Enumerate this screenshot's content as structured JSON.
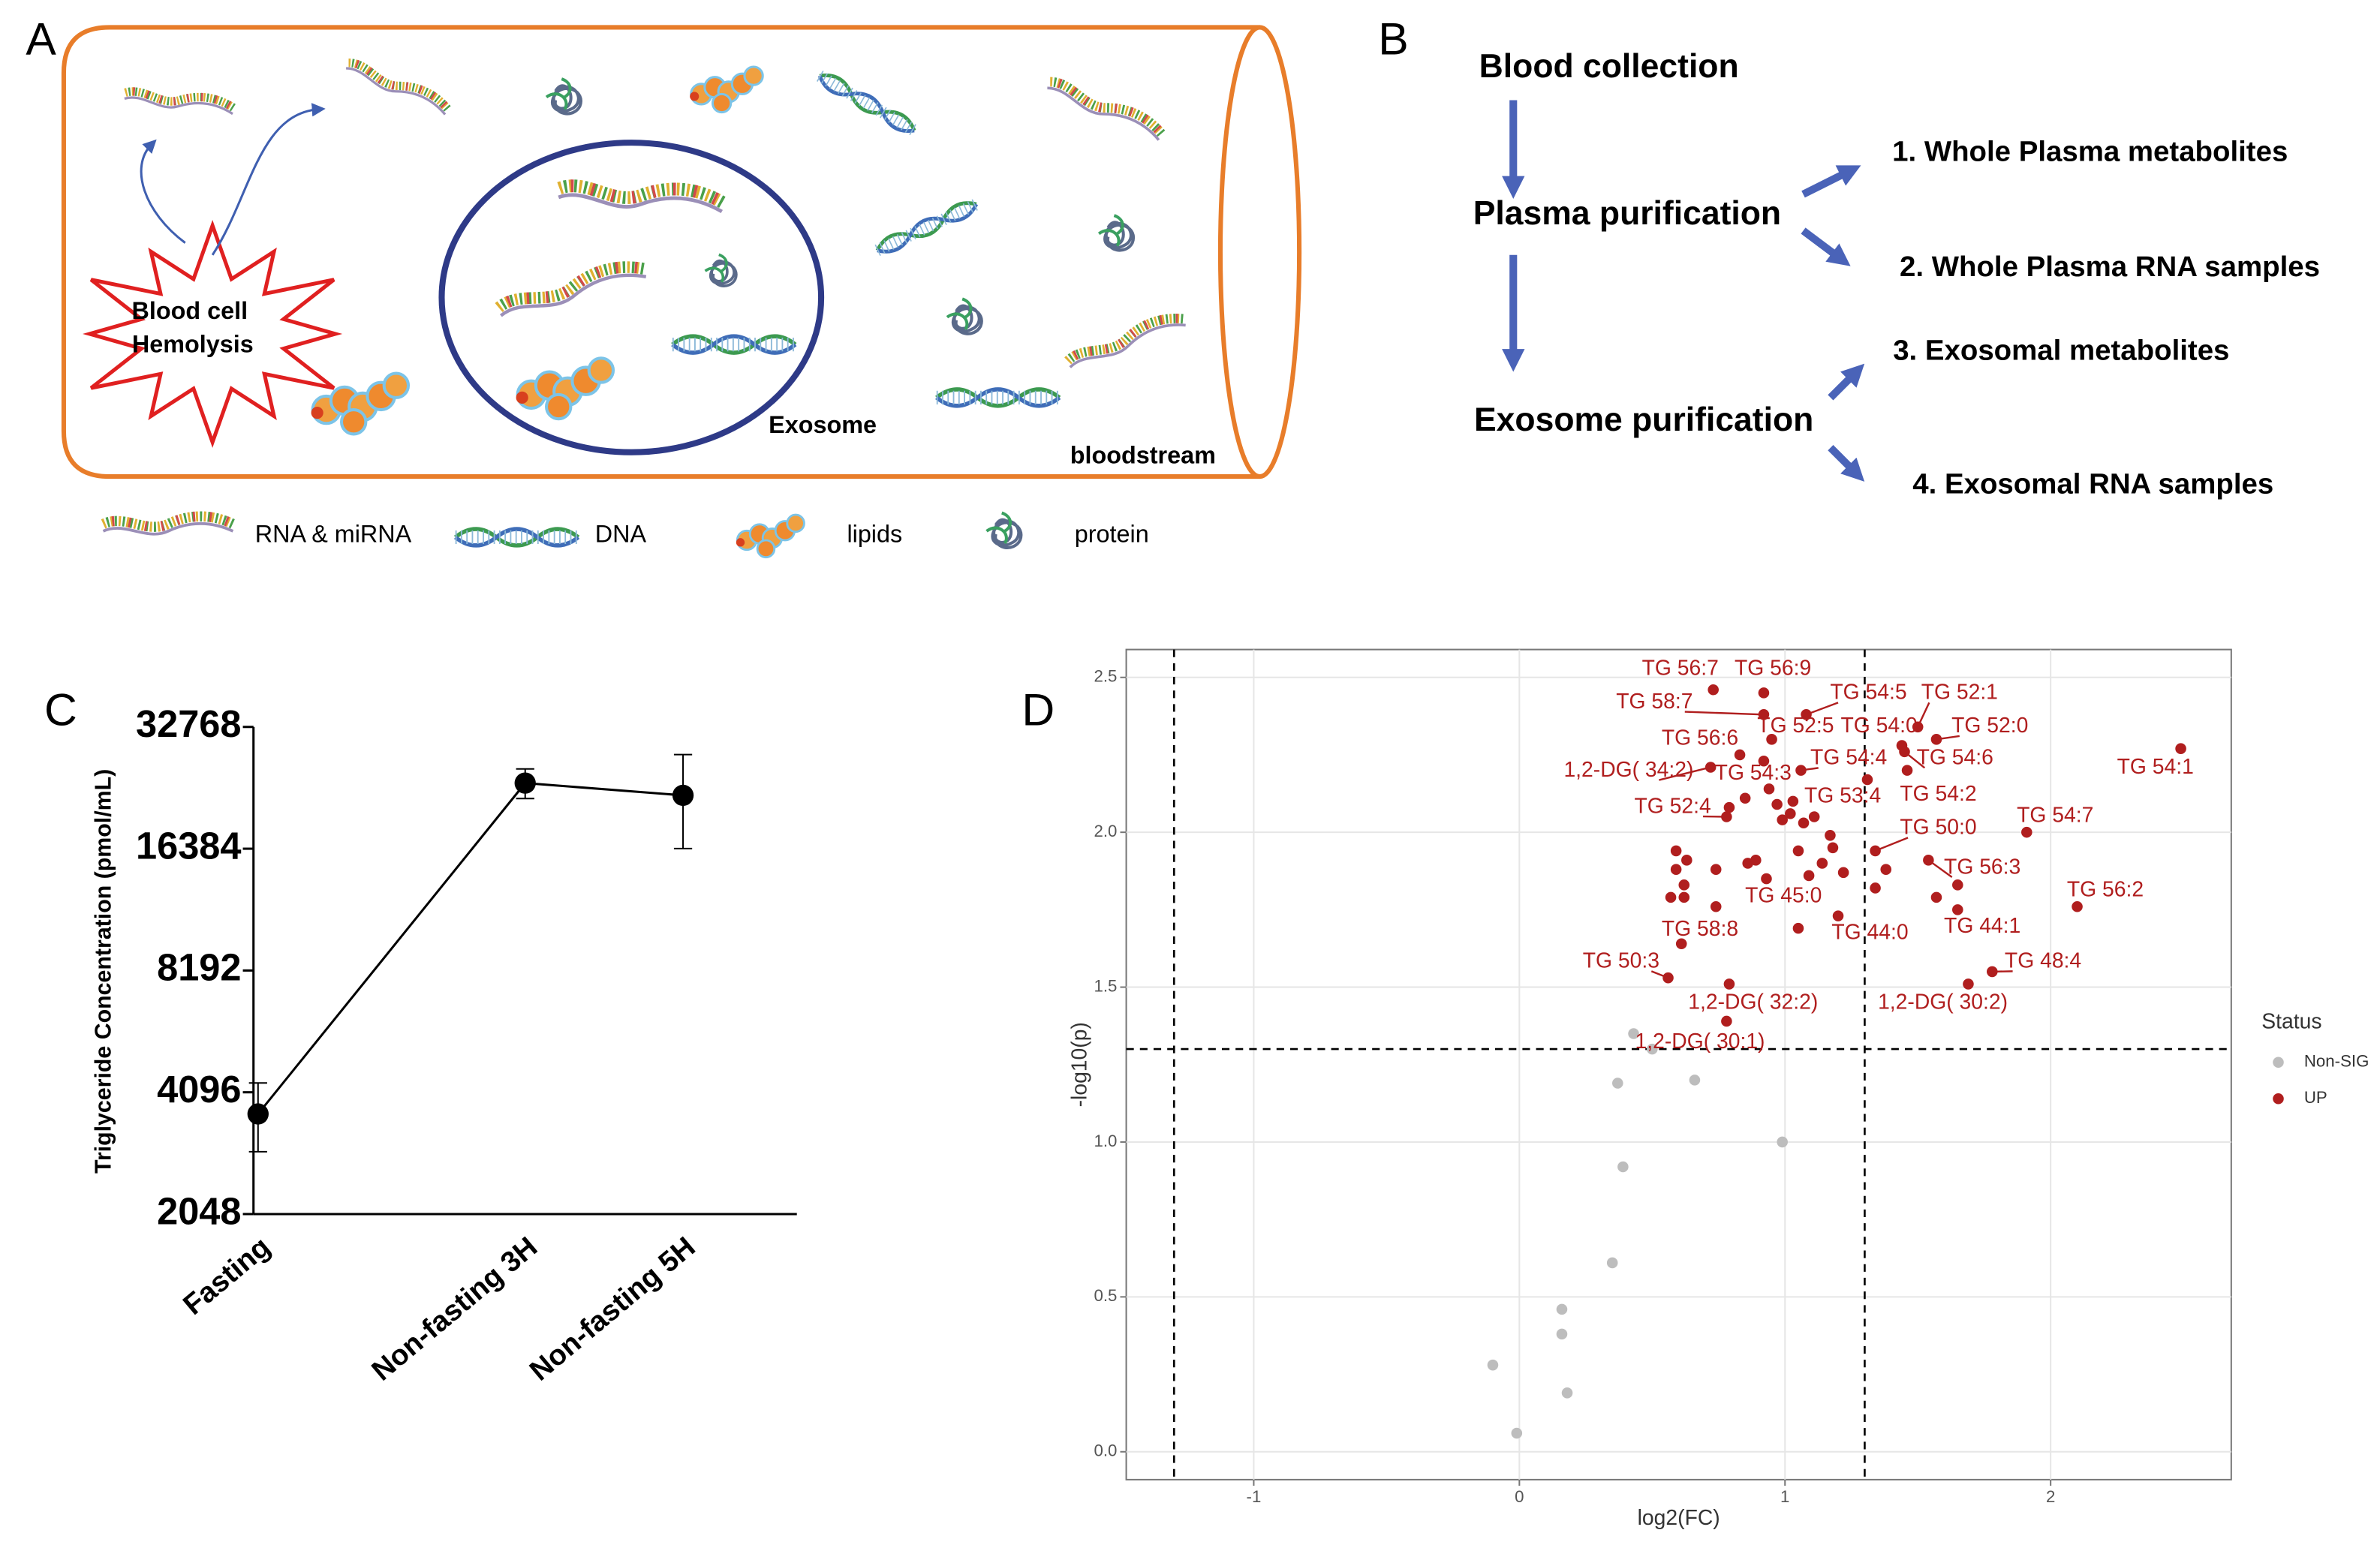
{
  "panel_labels": [
    "A",
    "B",
    "C",
    "D"
  ],
  "diagram": {
    "hemolysis": [
      "Blood cell",
      "Hemolysis"
    ],
    "exosome": "Exosome",
    "bloodstream": "bloodstream",
    "legend": [
      "RNA & miRNA",
      "DNA",
      "lipids",
      "protein"
    ]
  },
  "flow": {
    "steps": [
      "Blood collection",
      "Plasma purification",
      "Exosome purification"
    ],
    "outputs": [
      "1. Whole Plasma metabolites",
      "2. Whole Plasma RNA samples",
      "3. Exosomal metabolites",
      "4. Exosomal RNA samples"
    ]
  },
  "chart_data": [
    {
      "type": "line",
      "y_label": "Triglyceride Concentration (pmol/mL)",
      "categories": [
        "Fasting",
        "Non-fasting 3H",
        "Non-fasting 5H"
      ],
      "values": [
        3620,
        23800,
        22200
      ],
      "errors": [
        700,
        2000,
        5800
      ],
      "ylim": [
        2048,
        32768
      ],
      "yticks": [
        2048,
        4096,
        8192,
        16384,
        32768
      ],
      "log_base": 2,
      "color": "#000000"
    },
    {
      "type": "scatter",
      "x_label": "log2(FC)",
      "y_label": "-log10(p)",
      "xlim": [
        -1.48,
        2.68
      ],
      "ylim": [
        -0.09,
        2.59
      ],
      "xticks": [
        -1,
        0,
        1,
        2
      ],
      "yticks": [
        {
          "value": 0,
          "label": "0.0"
        },
        0.5,
        {
          "value": 1,
          "label": "1.0"
        },
        1.5,
        {
          "value": 2,
          "label": "2.0"
        },
        2.5
      ],
      "grid": true,
      "thresholds": {
        "x": [
          -1.3,
          1.3
        ],
        "y": [
          1.3
        ]
      },
      "legend_title": "Status",
      "legend": "right",
      "series": [
        {
          "name": "Non-SIG",
          "color": "#bdbdbd",
          "x": [
            -0.01,
            -0.1,
            0.18,
            0.16,
            0.16,
            0.35,
            0.39,
            0.99,
            0.37,
            0.66,
            0.43,
            0.5
          ],
          "values": [
            0.06,
            0.28,
            0.19,
            0.38,
            0.46,
            0.61,
            0.92,
            1.0,
            1.19,
            1.2,
            1.35,
            1.3
          ]
        },
        {
          "name": "UP",
          "color": "#b01e1e",
          "x": [
            0.73,
            0.92,
            0.92,
            1.08,
            1.5,
            0.95,
            1.44,
            1.57,
            0.83,
            1.06,
            1.45,
            0.72,
            0.92,
            1.31,
            1.46,
            2.49,
            0.78,
            1.34,
            1.91,
            1.54,
            2.1,
            0.93,
            1.2,
            1.65,
            0.61,
            1.78,
            0.56,
            0.79,
            1.69,
            0.78,
            0.59,
            0.63,
            0.59,
            0.57,
            0.62,
            0.62,
            0.74,
            0.74,
            0.86,
            0.89,
            0.99,
            1.02,
            1.07,
            1.11,
            1.05,
            1.09,
            1.17,
            1.18,
            1.14,
            1.22,
            1.38,
            1.34,
            1.57,
            1.05,
            0.94,
            0.97,
            1.03,
            0.79,
            0.85,
            1.65
          ],
          "values": [
            2.46,
            2.45,
            2.38,
            2.38,
            2.34,
            2.3,
            2.28,
            2.3,
            2.25,
            2.2,
            2.26,
            2.21,
            2.23,
            2.17,
            2.2,
            2.27,
            2.05,
            1.94,
            2.0,
            1.91,
            1.76,
            1.85,
            1.73,
            1.75,
            1.64,
            1.55,
            1.53,
            1.51,
            1.51,
            1.39,
            1.94,
            1.91,
            1.88,
            1.79,
            1.83,
            1.79,
            1.88,
            1.76,
            1.9,
            1.91,
            2.04,
            2.06,
            2.03,
            2.05,
            1.94,
            1.86,
            1.99,
            1.95,
            1.9,
            1.87,
            1.88,
            1.82,
            1.79,
            1.69,
            2.14,
            2.09,
            2.1,
            2.08,
            2.11,
            1.83
          ],
          "labels": [
            "TG 56:7",
            "TG 56:9",
            "TG 58:7",
            "TG 54:5",
            "TG 52:1",
            "TG 52:5",
            "TG 54:0",
            "TG 52:0",
            "TG 56:6",
            "TG 54:4",
            "TG 54:6",
            "1,2-DG( 34:2)",
            "TG 54:3",
            "TG 53:4",
            "TG 54:2",
            "TG 54:1",
            "TG 52:4",
            "TG 50:0",
            "TG 54:7",
            "TG 56:3",
            "TG 56:2",
            "TG 45:0",
            "TG 44:0",
            "TG 44:1",
            "TG 58:8",
            "TG 48:4",
            "TG 50:3",
            "1,2-DG( 32:2)",
            "1,2-DG( 30:2)",
            "1,2-DG( 30:1)",
            null,
            null,
            null,
            null,
            null,
            null,
            null,
            null,
            null,
            null,
            null,
            null,
            null,
            null,
            null,
            null,
            null,
            null,
            null,
            null,
            null,
            null,
            null,
            null,
            null,
            null,
            null,
            null,
            null,
            null
          ]
        }
      ]
    }
  ]
}
